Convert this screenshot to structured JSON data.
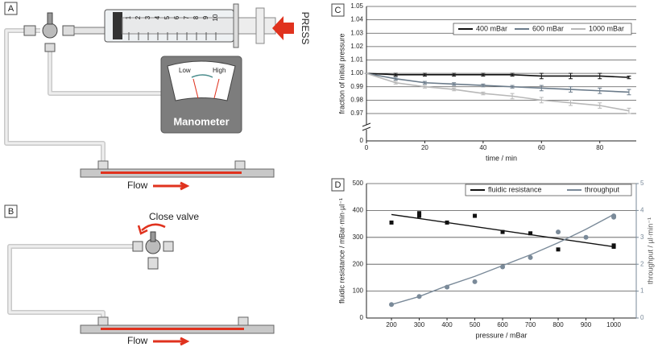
{
  "diagram": {
    "panel_a": "A",
    "press": "PRESS",
    "low": "Low",
    "high": "High",
    "manometer": "Manometer",
    "flow_a": "Flow",
    "panel_b": "B",
    "close_valve": "Close valve",
    "flow_b": "Flow",
    "syringe_scale": [
      "1",
      "2",
      "3",
      "4",
      "5",
      "6",
      "7",
      "8",
      "9",
      "10"
    ]
  },
  "chart_data": [
    {
      "type": "line",
      "panel": "C",
      "xlabel": "time / min",
      "ylabel": "fraction of initial pressure",
      "x": [
        0,
        10,
        20,
        30,
        40,
        50,
        60,
        70,
        80,
        90
      ],
      "xlim": [
        0,
        92.5
      ],
      "xticks": [
        0,
        20,
        40,
        60,
        80
      ],
      "ylim": [
        0,
        1.05
      ],
      "ybreak": [
        0,
        0.97
      ],
      "yticks": [
        0,
        0.97,
        0.98,
        0.99,
        {
          "value": 1,
          "label": "1.00"
        },
        1.01,
        1.02,
        1.03,
        1.04,
        1.05
      ],
      "grid": true,
      "legend": "upper right",
      "series": [
        {
          "name": "400 mBar",
          "color": "#111111",
          "values": [
            1,
            0.999,
            0.999,
            0.999,
            0.999,
            0.999,
            0.998,
            0.998,
            0.998,
            0.997
          ],
          "errors": [
            0,
            0.001,
            0.001,
            0.001,
            0.001,
            0.001,
            0.002,
            0.002,
            0.002,
            0.001
          ]
        },
        {
          "name": "600 mBar",
          "color": "#6b7b8a",
          "values": [
            1,
            0.996,
            0.993,
            0.992,
            0.991,
            0.99,
            0.989,
            0.988,
            0.987,
            0.986
          ],
          "errors": [
            0,
            0.001,
            0.001,
            0.001,
            0.001,
            0.001,
            0.002,
            0.002,
            0.002,
            0.002
          ]
        },
        {
          "name": "1000 mBar",
          "color": "#b8b8b8",
          "values": [
            1,
            0.993,
            0.99,
            0.988,
            0.985,
            0.983,
            0.98,
            0.978,
            0.976,
            0.972
          ],
          "errors": [
            0,
            0.001,
            0.001,
            0.001,
            0.001,
            0.002,
            0.002,
            0.002,
            0.002,
            0.002
          ]
        }
      ]
    },
    {
      "type": "scatter",
      "panel": "D",
      "xlabel": "pressure / mBar",
      "ylabel": "fluidic resistance / mBar·min·µl⁻¹",
      "y2label": "throughput / µl·min⁻¹",
      "xlim": [
        110,
        1081
      ],
      "xticks": [
        200,
        300,
        400,
        500,
        600,
        700,
        800,
        900,
        1000
      ],
      "ylim": [
        0,
        500
      ],
      "yticks": [
        0,
        100,
        200,
        300,
        400,
        500
      ],
      "y2lim": [
        0,
        5
      ],
      "y2ticks": [
        0,
        1,
        2,
        3,
        4,
        5
      ],
      "grid": true,
      "legend": "upper right",
      "series": [
        {
          "name": "fluidic resistance",
          "color": "#111111",
          "marker": "square",
          "x": [
            200,
            300,
            300,
            400,
            500,
            600,
            700,
            800,
            1000,
            1000
          ],
          "values": [
            355,
            390,
            380,
            355,
            380,
            320,
            315,
            255,
            270,
            265
          ],
          "fit_x": [
            200,
            1000
          ],
          "fit_values": [
            385,
            265
          ]
        },
        {
          "name": "throughput",
          "color": "#7a8a99",
          "marker": "circle",
          "axis": "y2",
          "x": [
            200,
            300,
            400,
            500,
            600,
            700,
            800,
            900,
            1000,
            1000
          ],
          "values": [
            0.5,
            0.8,
            1.15,
            1.35,
            1.9,
            2.25,
            3.2,
            3.0,
            3.8,
            3.75
          ],
          "fit_x": [
            200,
            300,
            400,
            500,
            600,
            700,
            800,
            900,
            1000
          ],
          "fit_values": [
            0.5,
            0.8,
            1.2,
            1.55,
            1.95,
            2.35,
            2.8,
            3.3,
            3.85
          ]
        }
      ]
    }
  ]
}
